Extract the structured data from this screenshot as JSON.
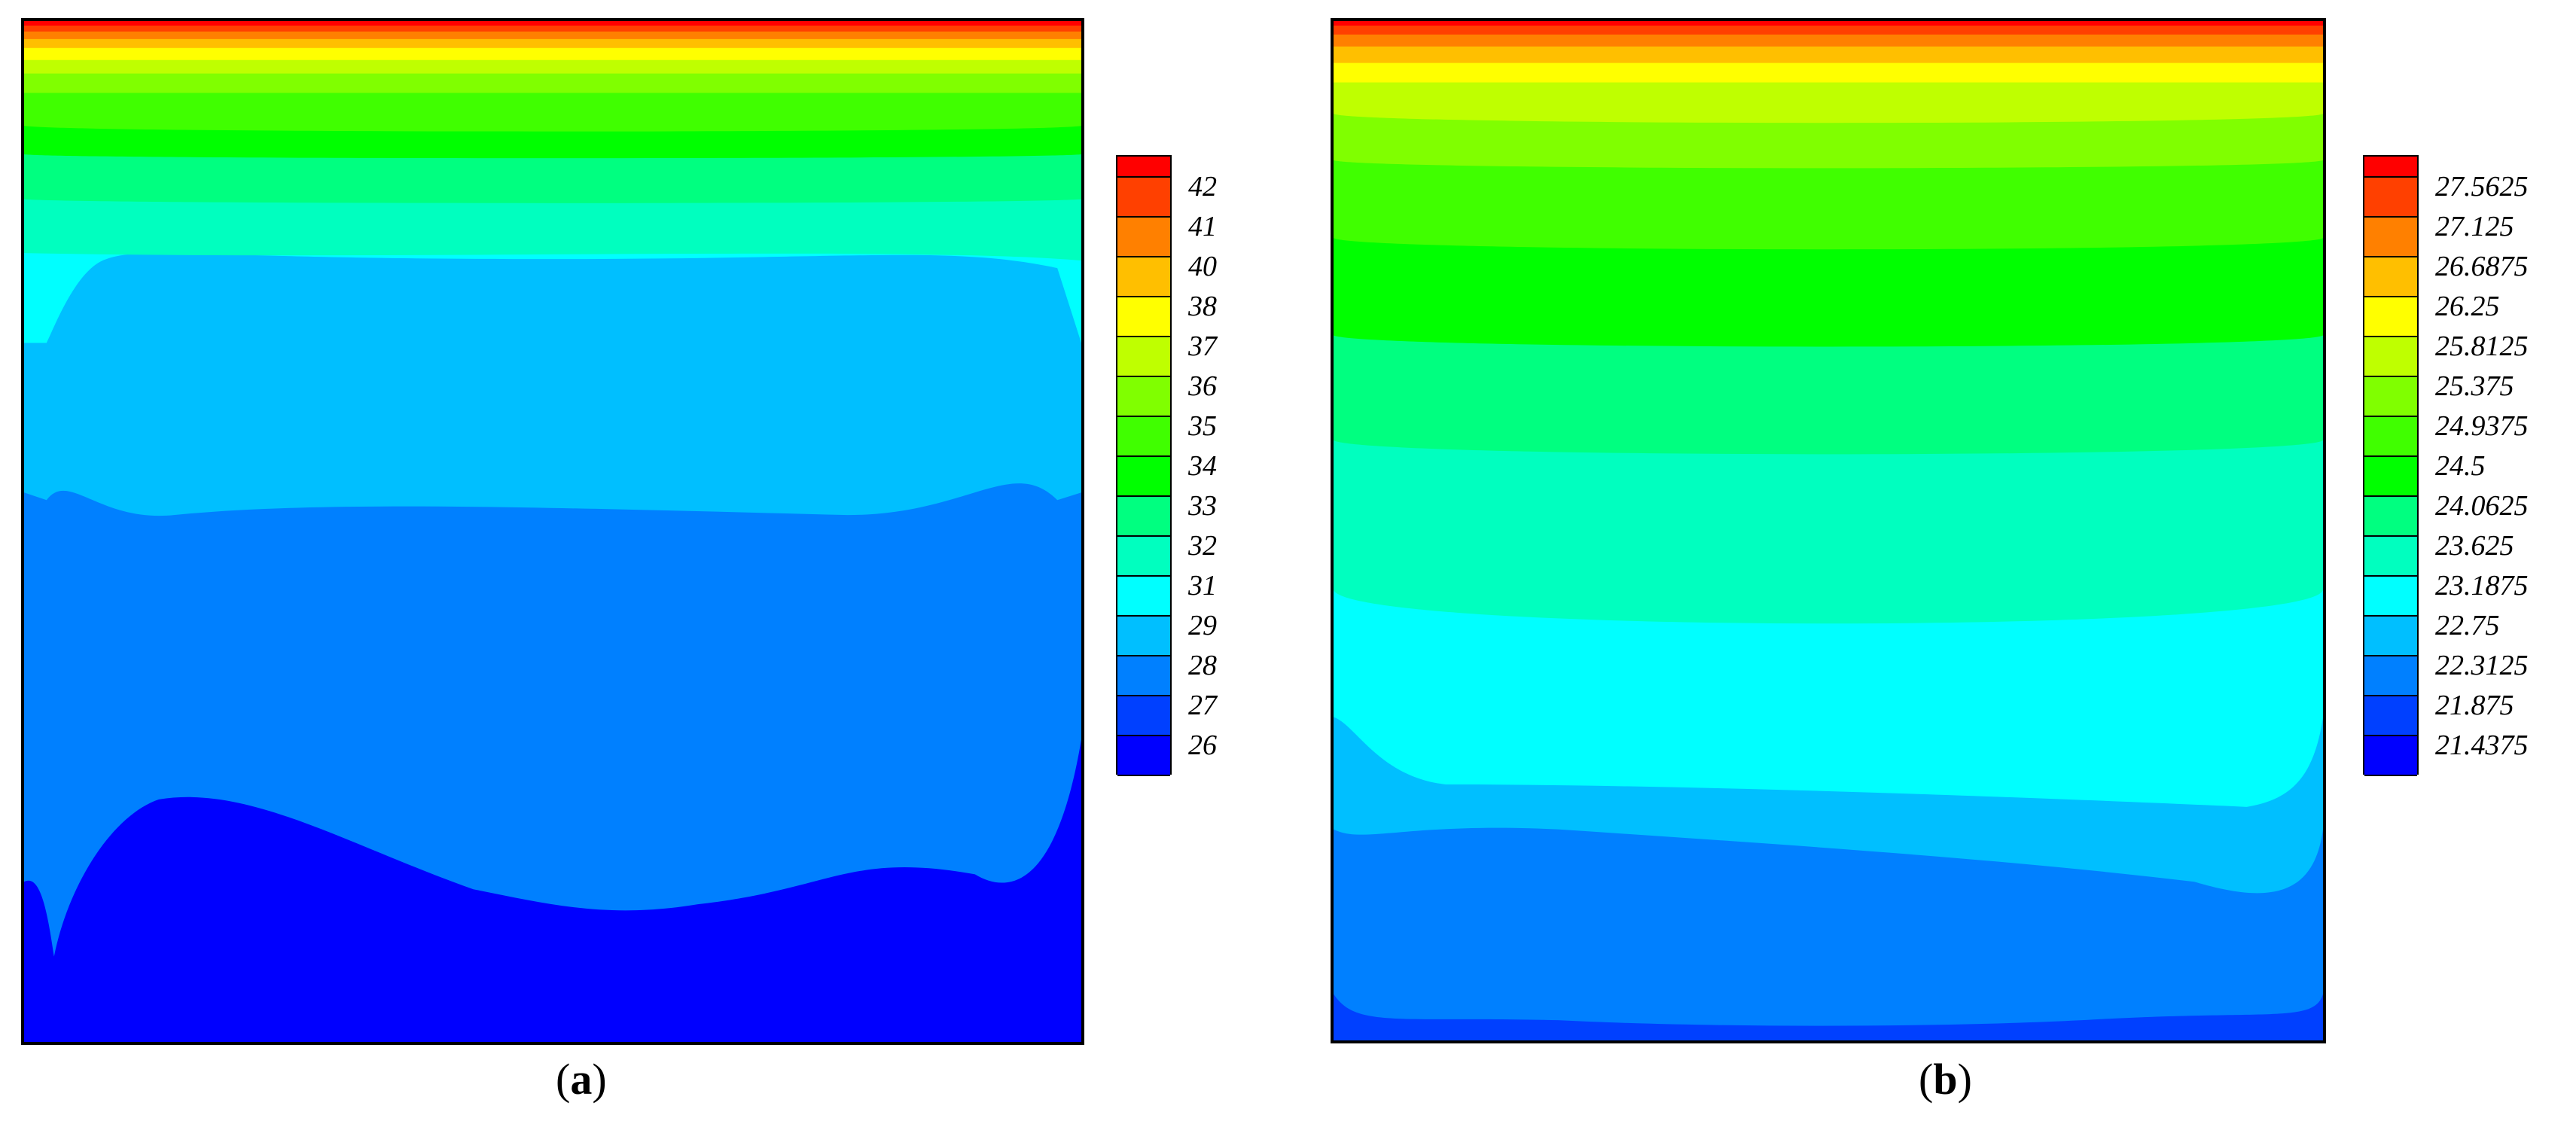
{
  "chart_data": [
    {
      "type": "heatmap",
      "panel": "a",
      "caption_letter": "a",
      "legend_levels": [
        42,
        41,
        40,
        38,
        37,
        36,
        35,
        34,
        33,
        32,
        31,
        29,
        28,
        27,
        26
      ],
      "legend_colors": [
        "#ff0000",
        "#ff4000",
        "#ff8000",
        "#ffbf00",
        "#ffff00",
        "#bfff00",
        "#80ff00",
        "#40ff00",
        "#00ff00",
        "#00ff80",
        "#00ffbf",
        "#00ffff",
        "#00bfff",
        "#0080ff",
        "#0040ff",
        "#0000ff"
      ],
      "field_colors_top_to_bottom": [
        "#ff0000",
        "#ff4000",
        "#ff8000",
        "#ffbf00",
        "#ffff00",
        "#bfff00",
        "#80ff00",
        "#40ff00",
        "#00ff00",
        "#00ff80",
        "#00ffbf",
        "#00ffff",
        "#00bfff",
        "#0080ff",
        "#0040ff",
        "#0000ff"
      ]
    },
    {
      "type": "heatmap",
      "panel": "b",
      "caption_letter": "b",
      "legend_levels": [
        "27.5625",
        "27.125",
        "26.6875",
        "26.25",
        "25.8125",
        "25.375",
        "24.9375",
        "24.5",
        "24.0625",
        "23.625",
        "23.1875",
        "22.75",
        "22.3125",
        "21.875",
        "21.4375"
      ],
      "legend_colors": [
        "#ff0000",
        "#ff4000",
        "#ff8000",
        "#ffbf00",
        "#ffff00",
        "#bfff00",
        "#80ff00",
        "#40ff00",
        "#00ff00",
        "#00ff80",
        "#00ffbf",
        "#00ffff",
        "#00bfff",
        "#0080ff",
        "#0040ff",
        "#0000ff"
      ],
      "field_colors_top_to_bottom": [
        "#ff0000",
        "#ff4000",
        "#ff8000",
        "#ffbf00",
        "#ffff00",
        "#bfff00",
        "#80ff00",
        "#40ff00",
        "#00ff00",
        "#00ff80",
        "#00ffbf",
        "#00ffff",
        "#00bfff",
        "#0080ff",
        "#0040ff"
      ]
    }
  ]
}
